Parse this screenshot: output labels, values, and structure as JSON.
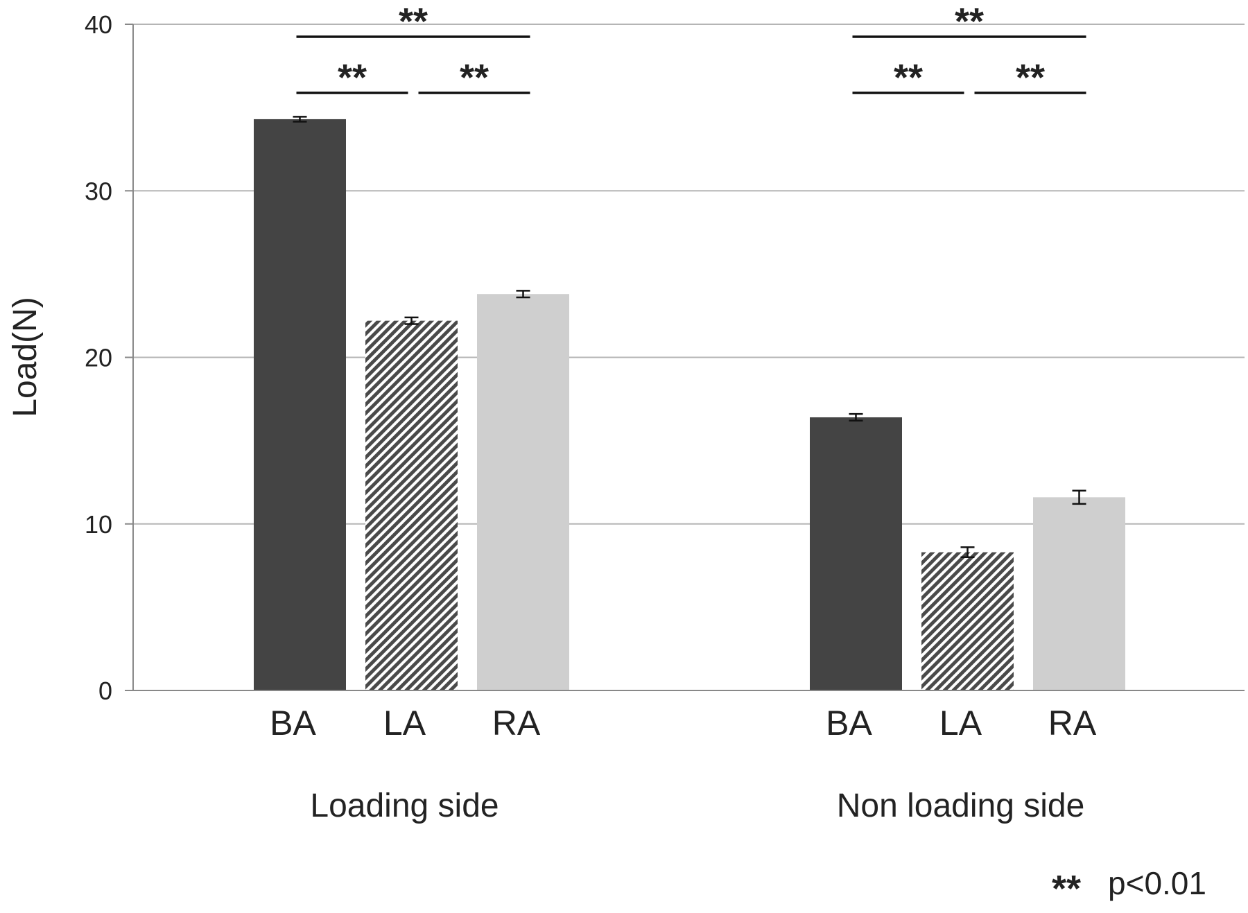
{
  "chart_data": {
    "type": "bar",
    "ylabel": "Load(N)",
    "ylim": [
      0,
      40
    ],
    "yticks": [
      0,
      10,
      20,
      30,
      40
    ],
    "grid": true,
    "colors": {
      "BA": "#444444",
      "LA": "#5a5a5a",
      "RA": "#cfcfcf",
      "axis": "#888888",
      "grid": "#b5b5b5"
    },
    "groups": [
      {
        "name": "Loading side",
        "bars": [
          {
            "label": "BA",
            "value": 34.3,
            "error": 0.15,
            "pattern": "solid"
          },
          {
            "label": "LA",
            "value": 22.2,
            "error": 0.2,
            "pattern": "hatched"
          },
          {
            "label": "RA",
            "value": 23.8,
            "error": 0.2,
            "pattern": "solid"
          }
        ],
        "significance": [
          {
            "from": 0,
            "to": 2,
            "label": "**"
          },
          {
            "from": 0,
            "to": 1,
            "label": "**"
          },
          {
            "from": 1,
            "to": 2,
            "label": "**"
          }
        ]
      },
      {
        "name": "Non loading side",
        "bars": [
          {
            "label": "BA",
            "value": 16.4,
            "error": 0.2,
            "pattern": "solid"
          },
          {
            "label": "LA",
            "value": 8.3,
            "error": 0.3,
            "pattern": "hatched"
          },
          {
            "label": "RA",
            "value": 11.6,
            "error": 0.4,
            "pattern": "solid"
          }
        ],
        "significance": [
          {
            "from": 0,
            "to": 2,
            "label": "**"
          },
          {
            "from": 0,
            "to": 1,
            "label": "**"
          },
          {
            "from": 1,
            "to": 2,
            "label": "**"
          }
        ]
      }
    ],
    "note": {
      "stars": "**",
      "text": "p<0.01"
    }
  }
}
